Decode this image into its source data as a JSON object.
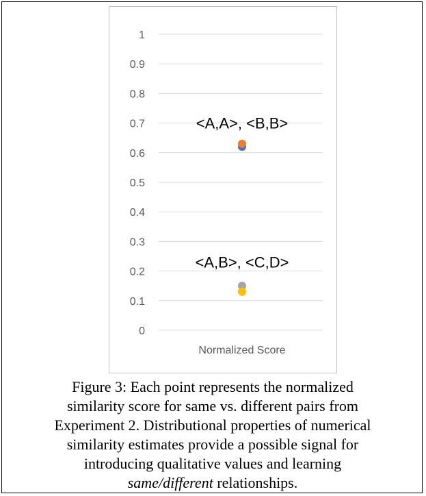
{
  "chart_data": {
    "type": "scatter",
    "categories": [
      "Normalized Score"
    ],
    "ylim": [
      0,
      1
    ],
    "yticks": [
      "0",
      "0.1",
      "0.2",
      "0.3",
      "0.4",
      "0.5",
      "0.6",
      "0.7",
      "0.8",
      "0.9",
      "1"
    ],
    "grid": true,
    "legend": "none",
    "series": [
      {
        "values": [
          0.62
        ],
        "color": "#4472C4"
      },
      {
        "values": [
          0.63
        ],
        "color": "#ED7D31"
      },
      {
        "values": [
          0.15
        ],
        "color": "#A5A5A5"
      },
      {
        "values": [
          0.13
        ],
        "color": "#FFC000"
      }
    ],
    "annotations": [
      {
        "text": "<A,A>, <B,B>",
        "y": 0.7
      },
      {
        "text": "<A,B>, <C,D>",
        "y": 0.23
      }
    ]
  },
  "caption": {
    "line1": "Figure 3: Each point represents the normalized",
    "line2": "similarity score for same vs. different pairs from",
    "line3": "Experiment 2. Distributional properties of numerical",
    "line4": "similarity estimates provide a possible signal for",
    "line5": "introducing qualitative values and learning",
    "line6_italic": "same/different",
    "line6_rest": " relationships."
  }
}
